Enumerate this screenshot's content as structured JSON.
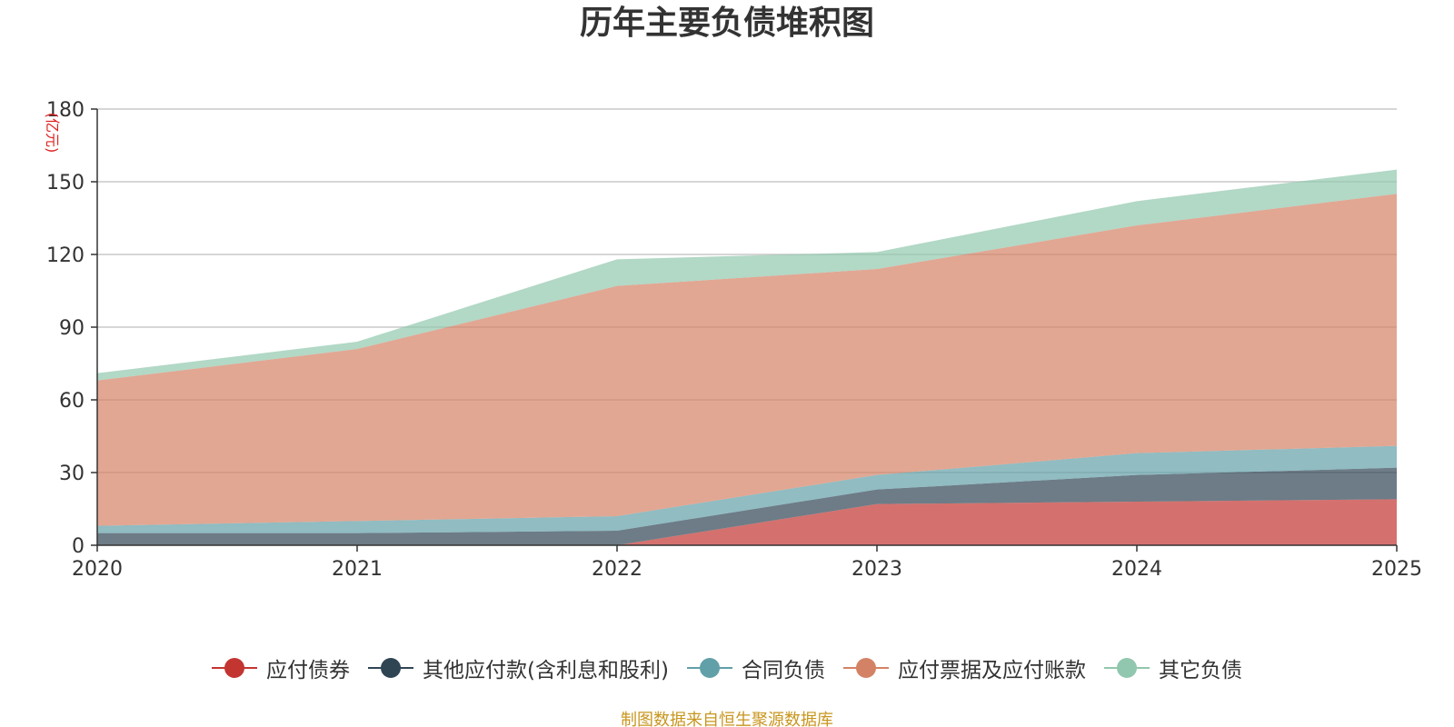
{
  "chart_data": {
    "type": "area",
    "stacked": true,
    "title": "历年主要负债堆积图",
    "unit_label": "(亿元)",
    "source": "制图数据来自恒生聚源数据库",
    "categories": [
      "2020",
      "2021",
      "2022",
      "2023",
      "2024",
      "2025"
    ],
    "ylim": [
      0,
      180
    ],
    "yticks": [
      0,
      30,
      60,
      90,
      120,
      150,
      180
    ],
    "grid": true,
    "legend_position": "bottom",
    "series": [
      {
        "name": "应付债券",
        "color": "#c23531",
        "values": [
          0,
          0,
          0,
          17,
          18,
          19
        ]
      },
      {
        "name": "其他应付款(含利息和股利)",
        "color": "#2f4554",
        "values": [
          5,
          5,
          6,
          6,
          11,
          13
        ]
      },
      {
        "name": "合同负债",
        "color": "#61a0a8",
        "values": [
          3,
          5,
          6,
          6,
          9,
          9
        ]
      },
      {
        "name": "应付票据及应付账款",
        "color": "#d48265",
        "values": [
          60,
          71,
          95,
          85,
          94,
          104
        ]
      },
      {
        "name": "其它负债",
        "color": "#91c7ae",
        "values": [
          3,
          3,
          11,
          7,
          10,
          10
        ]
      }
    ]
  }
}
